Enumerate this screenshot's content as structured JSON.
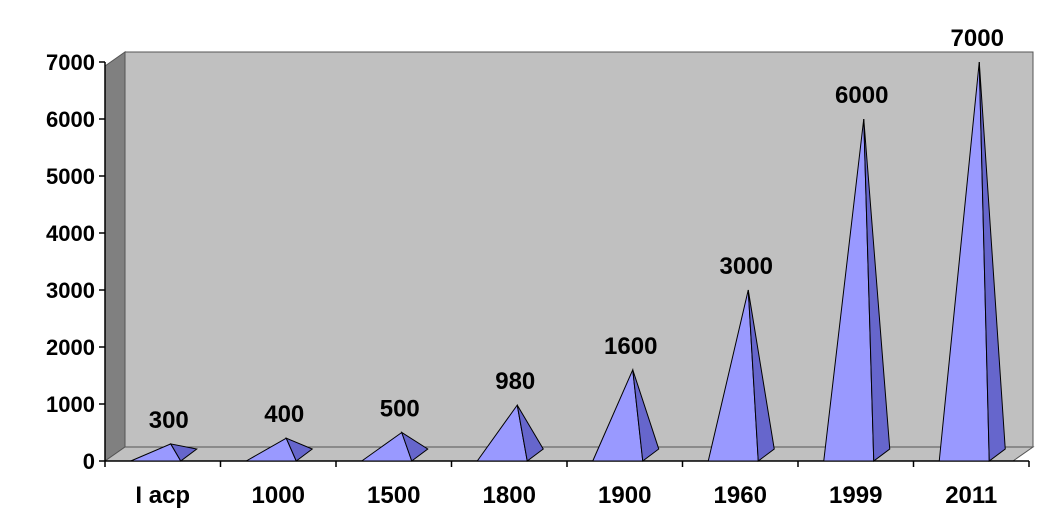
{
  "chart_data": {
    "type": "bar",
    "style": "3d-pyramid",
    "categories": [
      "I асp",
      "1000",
      "1500",
      "1800",
      "1900",
      "1960",
      "1999",
      "2011"
    ],
    "values": [
      300,
      400,
      500,
      980,
      1600,
      3000,
      6000,
      7000
    ],
    "data_labels": [
      "300",
      "400",
      "500",
      "980",
      "1600",
      "3000",
      "6000",
      "7000"
    ],
    "ylim": [
      0,
      7000
    ],
    "yticks": [
      0,
      1000,
      2000,
      3000,
      4000,
      5000,
      6000,
      7000
    ],
    "grid": false,
    "legend": "none",
    "title": "",
    "xlabel": "",
    "ylabel": "",
    "colors": {
      "wall": "#c0c0c0",
      "wall_side": "#808080",
      "pyramid_front": "#9999ff",
      "pyramid_side": "#6666cc",
      "axis": "#000000"
    }
  }
}
